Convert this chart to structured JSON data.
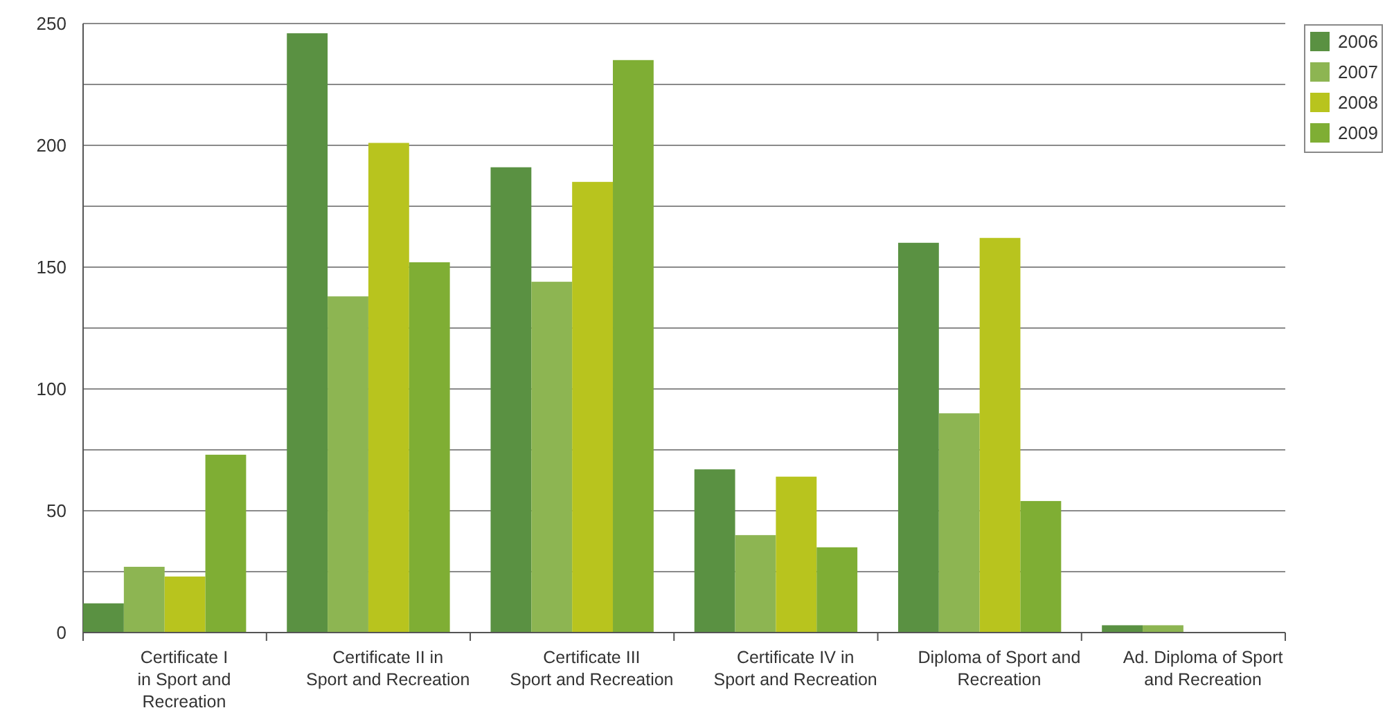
{
  "chart_data": {
    "type": "bar",
    "categories": [
      "Certificate I in Sport and Recreation",
      "Certificate II in Sport and Recreation",
      "Certificate III Sport and Recreation",
      "Certificate IV in Sport and Recreation",
      "Diploma of Sport and Recreation",
      "Ad. Diploma of Sport and Recreation"
    ],
    "series": [
      {
        "name": "2006",
        "color": "#5a9142",
        "values": [
          12,
          246,
          191,
          67,
          160,
          3
        ]
      },
      {
        "name": "2007",
        "color": "#8db552",
        "values": [
          27,
          138,
          144,
          40,
          90,
          3
        ]
      },
      {
        "name": "2008",
        "color": "#b8c41e",
        "values": [
          23,
          201,
          185,
          64,
          162,
          0
        ]
      },
      {
        "name": "2009",
        "color": "#7fae34",
        "values": [
          73,
          152,
          235,
          35,
          54,
          0
        ]
      }
    ],
    "ylim": [
      0,
      250
    ],
    "yticks": [
      0,
      {
        "value": 25,
        "label": null
      },
      50,
      {
        "value": 75,
        "label": null
      },
      100,
      {
        "value": 125,
        "label": null
      },
      150,
      {
        "value": 175,
        "label": null
      },
      200,
      {
        "value": 225,
        "label": null
      },
      250
    ],
    "grid": "y",
    "legend": "top right"
  }
}
